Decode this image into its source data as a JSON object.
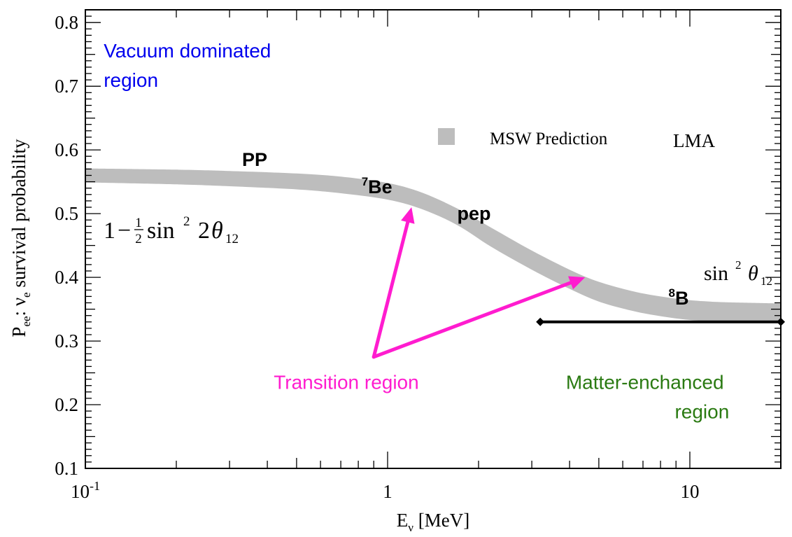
{
  "chart_data": {
    "type": "area",
    "title": "",
    "xlabel": {
      "main": "E",
      "sub": "ν",
      "unit": " [MeV]"
    },
    "ylabel": {
      "pre": "P",
      "pre_sub": "ee",
      "colon": ":  ",
      "nu": "ν",
      "nu_sub": "e",
      "rest": " survival probability"
    },
    "xscale": "log",
    "xlim": [
      0.1,
      20
    ],
    "ylim": [
      0.1,
      0.82
    ],
    "x_ticks": [
      {
        "value": 0.1,
        "label_base": "10",
        "label_exp": "-1"
      },
      {
        "value": 1,
        "label_base": "1",
        "label_exp": ""
      },
      {
        "value": 10,
        "label_base": "10",
        "label_exp": ""
      }
    ],
    "y_ticks": [
      {
        "value": 0.1,
        "label": "0.1"
      },
      {
        "value": 0.2,
        "label": "0.2"
      },
      {
        "value": 0.3,
        "label": "0.3"
      },
      {
        "value": 0.4,
        "label": "0.4"
      },
      {
        "value": 0.5,
        "label": "0.5"
      },
      {
        "value": 0.6,
        "label": "0.6"
      },
      {
        "value": 0.7,
        "label": "0.7"
      },
      {
        "value": 0.8,
        "label": "0.8"
      }
    ],
    "series": [
      {
        "name": "MSW Prediction",
        "color": "#bdbdbd",
        "x": [
          0.1,
          0.2,
          0.3,
          0.5,
          0.7,
          1.0,
          1.3,
          1.7,
          2.2,
          3.0,
          4.0,
          5.0,
          6.5,
          8.0,
          10.0,
          13.0,
          20.0
        ],
        "upper": [
          0.571,
          0.569,
          0.567,
          0.563,
          0.558,
          0.548,
          0.533,
          0.508,
          0.478,
          0.442,
          0.412,
          0.393,
          0.378,
          0.37,
          0.364,
          0.361,
          0.359
        ],
        "lower": [
          0.549,
          0.546,
          0.543,
          0.538,
          0.532,
          0.522,
          0.507,
          0.482,
          0.448,
          0.412,
          0.382,
          0.362,
          0.347,
          0.339,
          0.333,
          0.33,
          0.328
        ]
      }
    ],
    "legend": {
      "label": "MSW Prediction",
      "extra": "LMA",
      "position": "top-right"
    },
    "annotations": [
      {
        "text": "PP",
        "x": 0.33,
        "y": 0.575,
        "color": "#000000"
      },
      {
        "text": "Be",
        "sup": "7",
        "x": 0.82,
        "y": 0.532,
        "color": "#000000"
      },
      {
        "text": "pep",
        "x": 1.7,
        "y": 0.49,
        "color": "#000000"
      },
      {
        "text": "B",
        "sup": "8",
        "x": 8.5,
        "y": 0.357,
        "color": "#000000"
      },
      {
        "line1": "Vacuum dominated",
        "line2": "region",
        "x": 0.115,
        "y": 0.745,
        "color": "#0000ee"
      },
      {
        "line1": "Matter-enchanced",
        "line2": "region",
        "x": 13.5,
        "y": 0.225,
        "color": "#2a7a12"
      },
      {
        "text": "Transition region",
        "x": 0.42,
        "y": 0.225,
        "color": "#ff1ccf"
      },
      {
        "formula": "vacuum",
        "x": 0.108,
        "y": 0.46,
        "color": "#000000"
      },
      {
        "formula": "matter",
        "x": 10.3,
        "y": 0.36,
        "color": "#000000"
      }
    ],
    "arrows": [
      {
        "from": [
          0.9,
          0.275
        ],
        "to": [
          1.2,
          0.51
        ],
        "color": "#ff1ccf"
      },
      {
        "from": [
          0.9,
          0.275
        ],
        "to": [
          4.5,
          0.4
        ],
        "color": "#ff1ccf"
      }
    ],
    "range_bar": {
      "x": [
        3.2,
        20
      ],
      "y": 0.33,
      "color": "#000000"
    }
  },
  "formulas": {
    "vacuum": {
      "one": "1",
      "minus": "−",
      "num": "1",
      "den": "2",
      "sin": "sin",
      "exp": "2",
      "two": "2",
      "theta": "θ",
      "sub": "12"
    },
    "matter": {
      "sin": "sin",
      "exp": "2",
      "theta": "θ",
      "sub": "12"
    }
  }
}
